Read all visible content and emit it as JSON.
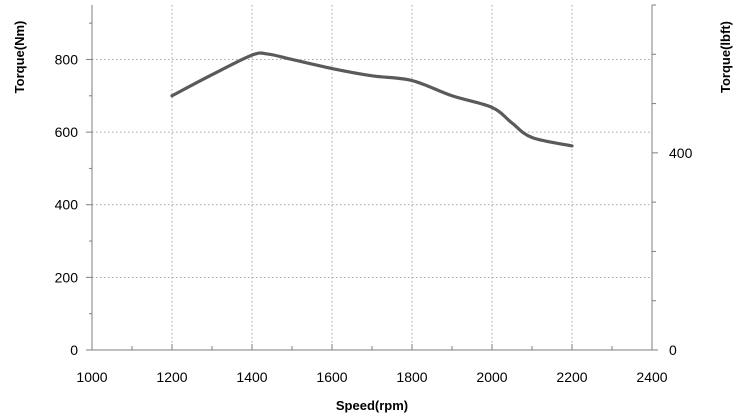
{
  "chart_data": {
    "type": "line",
    "title": "",
    "xlabel": "Speed(rpm)",
    "ylabel": "Torque(Nm)",
    "y2label": "Torque(lbft)",
    "xlim": [
      1000,
      2400
    ],
    "ylim": [
      0,
      950
    ],
    "y2lim": [
      0,
      700
    ],
    "x_ticks": [
      1000,
      1200,
      1400,
      1600,
      1800,
      2000,
      2200,
      2400
    ],
    "y_ticks": [
      0,
      200,
      400,
      600,
      800
    ],
    "y2_ticks": [
      0,
      400
    ],
    "grid": true,
    "grid_style": "dotted",
    "legend": "none",
    "line_color": "#5a5a5a",
    "series": [
      {
        "x": [
          1200,
          1300,
          1400,
          1440,
          1500,
          1600,
          1700,
          1800,
          1900,
          2000,
          2050,
          2100,
          2200
        ],
        "y": [
          700,
          758,
          812,
          815,
          800,
          775,
          755,
          742,
          700,
          668,
          625,
          585,
          562
        ]
      }
    ]
  }
}
